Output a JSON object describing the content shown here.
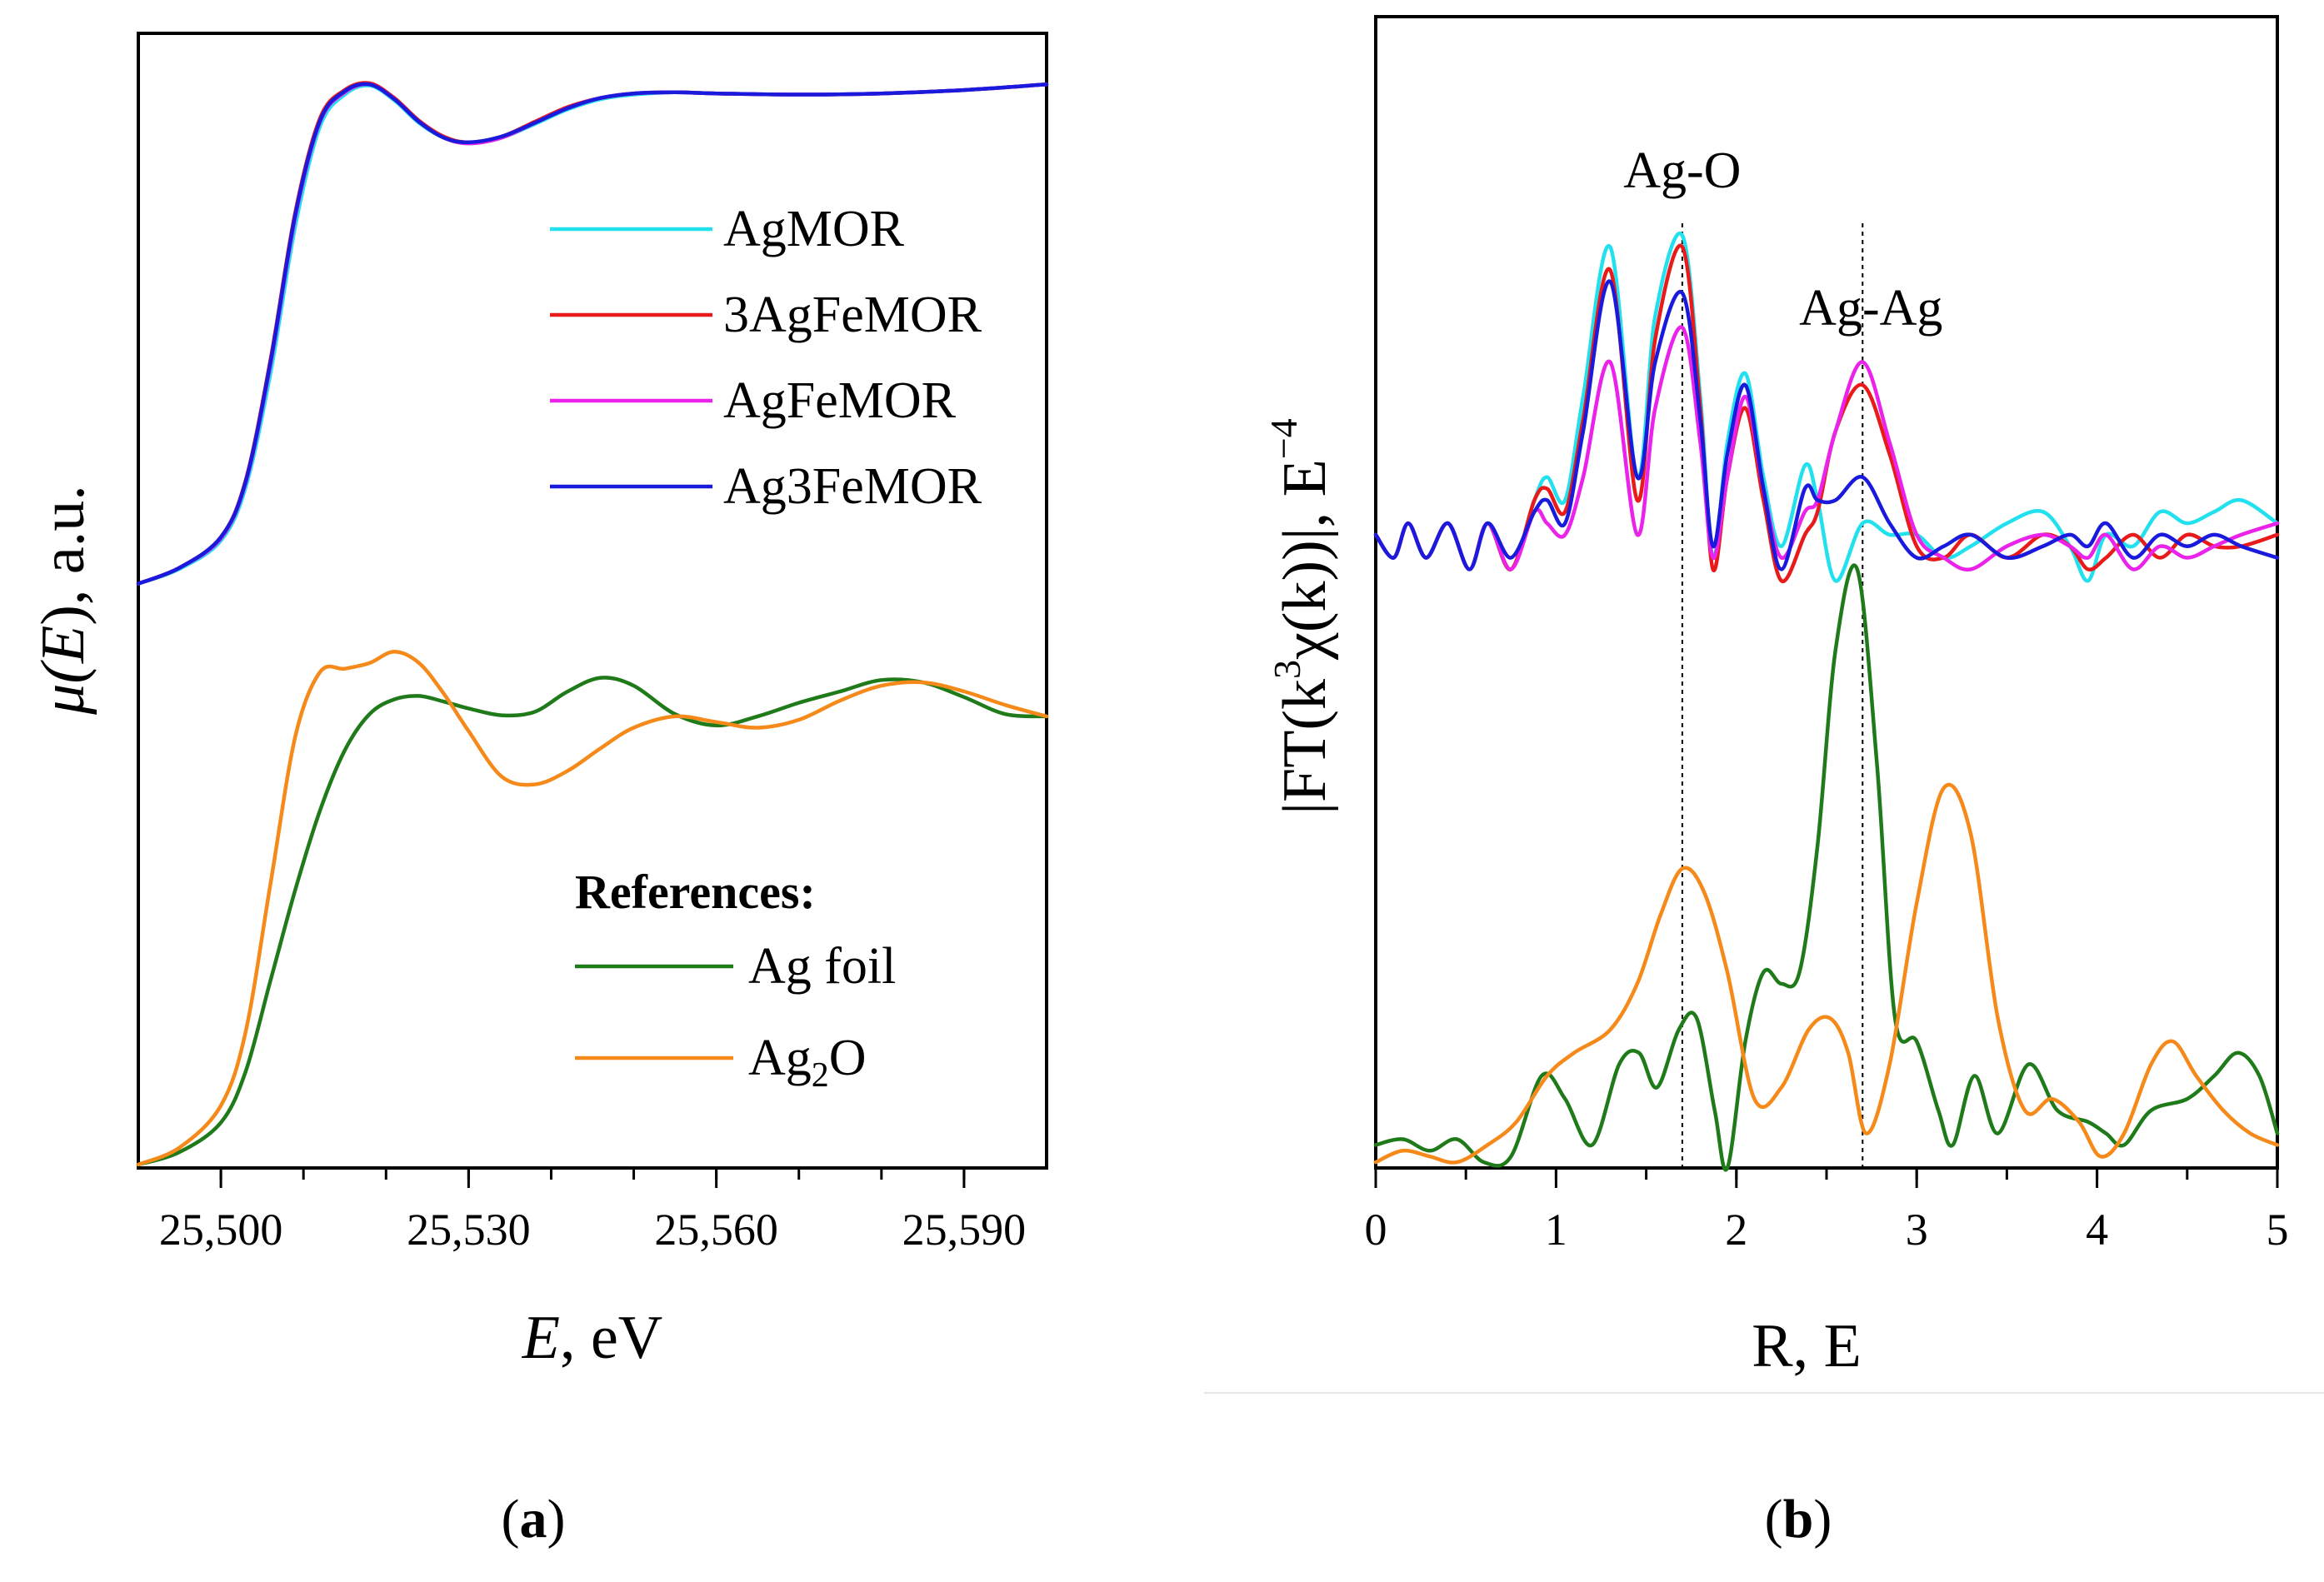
{
  "chart_data": [
    {
      "type": "line",
      "panel_label": "(a)",
      "xlabel": {
        "var": "E",
        "unit": ", eV"
      },
      "ylabel": {
        "var": "μ(",
        "sym": "E",
        "unit": "), a.u."
      },
      "xlim": [
        25490,
        25600
      ],
      "ylim": [
        0,
        1
      ],
      "xticks": [
        25500,
        25530,
        25560,
        25590
      ],
      "xtick_labels": [
        "25,500",
        "25,530",
        "25,560",
        "25,590"
      ],
      "minor_xtick_step": 10,
      "yticks_shown": false,
      "legend": {
        "position": "upper-right",
        "header": "References:",
        "ref_position": "lower-right"
      },
      "series": [
        {
          "name": "AgMOR",
          "color": "#22e0ee",
          "group": "sample",
          "x": [
            25490,
            25495,
            25500,
            25503,
            25506,
            25509,
            25512,
            25515,
            25518,
            25521,
            25524,
            25527,
            25530,
            25534,
            25538,
            25542,
            25546,
            25550,
            25555,
            25560,
            25570,
            25580,
            25590,
            25600
          ],
          "y": [
            0.515,
            0.528,
            0.553,
            0.6,
            0.7,
            0.83,
            0.918,
            0.946,
            0.954,
            0.941,
            0.921,
            0.908,
            0.903,
            0.908,
            0.92,
            0.933,
            0.942,
            0.946,
            0.948,
            0.947,
            0.946,
            0.947,
            0.95,
            0.955
          ]
        },
        {
          "name": "3AgFeMOR",
          "color": "#e81a1a",
          "group": "sample",
          "x": [
            25490,
            25495,
            25500,
            25503,
            25506,
            25509,
            25512,
            25515,
            25518,
            25521,
            25524,
            25527,
            25530,
            25534,
            25538,
            25542,
            25546,
            25550,
            25555,
            25560,
            25570,
            25580,
            25590,
            25600
          ],
          "y": [
            0.515,
            0.529,
            0.556,
            0.606,
            0.712,
            0.842,
            0.925,
            0.95,
            0.956,
            0.943,
            0.923,
            0.909,
            0.904,
            0.909,
            0.922,
            0.935,
            0.943,
            0.947,
            0.948,
            0.947,
            0.946,
            0.947,
            0.95,
            0.955
          ]
        },
        {
          "name": "AgFeMOR",
          "color": "#ea22ea",
          "group": "sample",
          "x": [
            25490,
            25495,
            25500,
            25503,
            25506,
            25509,
            25512,
            25515,
            25518,
            25521,
            25524,
            25527,
            25530,
            25534,
            25538,
            25542,
            25546,
            25550,
            25555,
            25560,
            25570,
            25580,
            25590,
            25600
          ],
          "y": [
            0.515,
            0.529,
            0.555,
            0.604,
            0.708,
            0.838,
            0.922,
            0.948,
            0.955,
            0.942,
            0.922,
            0.908,
            0.903,
            0.908,
            0.921,
            0.934,
            0.943,
            0.947,
            0.948,
            0.947,
            0.946,
            0.947,
            0.95,
            0.955
          ]
        },
        {
          "name": "Ag3FeMOR",
          "color": "#1a1adc",
          "group": "sample",
          "x": [
            25490,
            25495,
            25500,
            25503,
            25506,
            25509,
            25512,
            25515,
            25518,
            25521,
            25524,
            25527,
            25530,
            25534,
            25538,
            25542,
            25546,
            25550,
            25555,
            25560,
            25570,
            25580,
            25590,
            25600
          ],
          "y": [
            0.515,
            0.529,
            0.556,
            0.605,
            0.71,
            0.84,
            0.923,
            0.949,
            0.955,
            0.942,
            0.922,
            0.908,
            0.904,
            0.909,
            0.921,
            0.934,
            0.943,
            0.947,
            0.948,
            0.947,
            0.946,
            0.947,
            0.95,
            0.955
          ]
        },
        {
          "name": "Ag foil",
          "color": "#1f7a1a",
          "group": "reference",
          "x": [
            25490,
            25495,
            25500,
            25503,
            25506,
            25509,
            25512,
            25515,
            25518,
            25521,
            25524,
            25527,
            25530,
            25534,
            25538,
            25542,
            25546,
            25550,
            25555,
            25560,
            25565,
            25570,
            25575,
            25580,
            25585,
            25590,
            25595,
            25600
          ],
          "y": [
            0.003,
            0.014,
            0.04,
            0.085,
            0.165,
            0.245,
            0.315,
            0.368,
            0.4,
            0.413,
            0.416,
            0.411,
            0.405,
            0.399,
            0.402,
            0.42,
            0.432,
            0.425,
            0.4,
            0.39,
            0.398,
            0.41,
            0.42,
            0.43,
            0.428,
            0.415,
            0.4,
            0.398
          ]
        },
        {
          "name": "Ag",
          "sub": "2",
          "name_tail": "O",
          "color": "#f58a1a",
          "group": "reference",
          "x": [
            25490,
            25495,
            25500,
            25503,
            25506,
            25509,
            25512,
            25515,
            25518,
            25521,
            25524,
            25527,
            25530,
            25534,
            25538,
            25542,
            25546,
            25550,
            25555,
            25560,
            25565,
            25570,
            25575,
            25580,
            25585,
            25590,
            25595,
            25600
          ],
          "y": [
            0.003,
            0.018,
            0.055,
            0.12,
            0.25,
            0.38,
            0.437,
            0.44,
            0.445,
            0.455,
            0.445,
            0.418,
            0.385,
            0.345,
            0.338,
            0.35,
            0.37,
            0.388,
            0.398,
            0.393,
            0.388,
            0.395,
            0.412,
            0.425,
            0.428,
            0.42,
            0.408,
            0.398
          ]
        }
      ]
    },
    {
      "type": "line",
      "panel_label": "(b)",
      "xlabel": "R, E",
      "ylabel": {
        "pre": "|FT(k",
        "sup": "3",
        "mid": "χ(k))|, E",
        "sup2": "−4"
      },
      "xlim": [
        0,
        5
      ],
      "ylim": [
        0,
        1
      ],
      "xticks": [
        0,
        1,
        2,
        3,
        4,
        5
      ],
      "xtick_labels": [
        "0",
        "1",
        "2",
        "3",
        "4",
        "5"
      ],
      "minor_xtick_step": 0.5,
      "yticks_shown": false,
      "annotations": [
        {
          "text": "Ag-O",
          "x": 1.7
        },
        {
          "text": "Ag-Ag",
          "x": 2.7
        }
      ],
      "vlines": [
        1.7,
        2.7
      ],
      "series": [
        {
          "name": "AgMOR",
          "color": "#22e0ee",
          "x": [
            0,
            0.1,
            0.18,
            0.28,
            0.4,
            0.52,
            0.62,
            0.75,
            0.88,
            0.95,
            1.05,
            1.15,
            1.3,
            1.45,
            1.55,
            1.7,
            1.8,
            1.87,
            1.95,
            2.05,
            2.15,
            2.25,
            2.38,
            2.45,
            2.55,
            2.7,
            2.85,
            3.0,
            3.15,
            3.3,
            3.5,
            3.7,
            3.85,
            3.95,
            4.05,
            4.2,
            4.35,
            4.5,
            4.65,
            4.8,
            5.0
          ],
          "y": [
            0.55,
            0.53,
            0.56,
            0.53,
            0.56,
            0.52,
            0.56,
            0.52,
            0.58,
            0.6,
            0.58,
            0.67,
            0.8,
            0.6,
            0.74,
            0.81,
            0.67,
            0.53,
            0.63,
            0.69,
            0.6,
            0.54,
            0.61,
            0.58,
            0.51,
            0.56,
            0.55,
            0.55,
            0.53,
            0.54,
            0.56,
            0.57,
            0.54,
            0.51,
            0.55,
            0.54,
            0.57,
            0.56,
            0.57,
            0.58,
            0.56
          ]
        },
        {
          "name": "3AgFeMOR",
          "color": "#e81a1a",
          "x": [
            0,
            0.1,
            0.18,
            0.28,
            0.4,
            0.52,
            0.62,
            0.75,
            0.88,
            0.95,
            1.05,
            1.15,
            1.3,
            1.45,
            1.55,
            1.7,
            1.8,
            1.87,
            1.95,
            2.05,
            2.15,
            2.25,
            2.38,
            2.45,
            2.55,
            2.7,
            2.85,
            3.0,
            3.15,
            3.3,
            3.5,
            3.7,
            3.85,
            3.95,
            4.05,
            4.2,
            4.35,
            4.5,
            4.65,
            4.8,
            5.0
          ],
          "y": [
            0.55,
            0.53,
            0.56,
            0.53,
            0.56,
            0.52,
            0.56,
            0.52,
            0.58,
            0.59,
            0.57,
            0.65,
            0.78,
            0.58,
            0.72,
            0.8,
            0.66,
            0.52,
            0.6,
            0.66,
            0.58,
            0.51,
            0.55,
            0.57,
            0.64,
            0.68,
            0.62,
            0.54,
            0.53,
            0.55,
            0.53,
            0.55,
            0.54,
            0.52,
            0.53,
            0.55,
            0.53,
            0.55,
            0.54,
            0.54,
            0.55
          ]
        },
        {
          "name": "AgFeMOR",
          "color": "#ea22ea",
          "x": [
            0,
            0.1,
            0.18,
            0.28,
            0.4,
            0.52,
            0.62,
            0.75,
            0.88,
            0.95,
            1.05,
            1.15,
            1.3,
            1.45,
            1.55,
            1.7,
            1.8,
            1.87,
            1.95,
            2.05,
            2.15,
            2.25,
            2.38,
            2.45,
            2.55,
            2.7,
            2.85,
            3.0,
            3.15,
            3.3,
            3.5,
            3.7,
            3.85,
            3.95,
            4.05,
            4.2,
            4.35,
            4.5,
            4.65,
            4.8,
            5.0
          ],
          "y": [
            0.55,
            0.53,
            0.56,
            0.53,
            0.56,
            0.52,
            0.56,
            0.52,
            0.57,
            0.56,
            0.55,
            0.6,
            0.7,
            0.55,
            0.66,
            0.73,
            0.63,
            0.53,
            0.6,
            0.67,
            0.59,
            0.53,
            0.57,
            0.58,
            0.64,
            0.7,
            0.63,
            0.55,
            0.53,
            0.52,
            0.54,
            0.55,
            0.54,
            0.53,
            0.55,
            0.52,
            0.54,
            0.53,
            0.54,
            0.55,
            0.56
          ]
        },
        {
          "name": "Ag3FeMOR",
          "color": "#1a1adc",
          "x": [
            0,
            0.1,
            0.18,
            0.28,
            0.4,
            0.52,
            0.62,
            0.75,
            0.88,
            0.95,
            1.05,
            1.15,
            1.3,
            1.45,
            1.55,
            1.7,
            1.8,
            1.87,
            1.95,
            2.05,
            2.15,
            2.25,
            2.38,
            2.45,
            2.55,
            2.7,
            2.85,
            3.0,
            3.15,
            3.3,
            3.5,
            3.7,
            3.85,
            3.95,
            4.05,
            4.2,
            4.35,
            4.5,
            4.65,
            4.8,
            5.0
          ],
          "y": [
            0.55,
            0.53,
            0.56,
            0.53,
            0.56,
            0.52,
            0.56,
            0.53,
            0.57,
            0.58,
            0.56,
            0.64,
            0.77,
            0.6,
            0.7,
            0.76,
            0.65,
            0.54,
            0.62,
            0.68,
            0.59,
            0.52,
            0.59,
            0.58,
            0.58,
            0.6,
            0.56,
            0.53,
            0.54,
            0.55,
            0.53,
            0.54,
            0.55,
            0.54,
            0.56,
            0.53,
            0.55,
            0.54,
            0.55,
            0.54,
            0.53
          ]
        },
        {
          "name": "Ag foil",
          "color": "#1f7a1a",
          "x": [
            0,
            0.15,
            0.3,
            0.45,
            0.6,
            0.75,
            0.92,
            1.05,
            1.2,
            1.35,
            1.46,
            1.56,
            1.68,
            1.78,
            1.88,
            1.95,
            2.05,
            2.15,
            2.25,
            2.35,
            2.45,
            2.55,
            2.67,
            2.78,
            2.88,
            3.0,
            3.12,
            3.2,
            3.32,
            3.45,
            3.62,
            3.78,
            3.95,
            4.05,
            4.15,
            4.3,
            4.5,
            4.65,
            4.78,
            4.9,
            5.0
          ],
          "y": [
            0.02,
            0.025,
            0.015,
            0.025,
            0.005,
            0.01,
            0.08,
            0.06,
            0.02,
            0.09,
            0.1,
            0.07,
            0.12,
            0.13,
            0.05,
            0.0,
            0.11,
            0.17,
            0.16,
            0.17,
            0.28,
            0.45,
            0.52,
            0.35,
            0.13,
            0.11,
            0.05,
            0.02,
            0.08,
            0.03,
            0.09,
            0.05,
            0.04,
            0.03,
            0.02,
            0.05,
            0.06,
            0.08,
            0.1,
            0.08,
            0.03
          ]
        },
        {
          "name": "Ag",
          "sub": "2",
          "name_tail": "O",
          "color": "#f58a1a",
          "x": [
            0,
            0.15,
            0.3,
            0.45,
            0.62,
            0.78,
            0.95,
            1.1,
            1.3,
            1.45,
            1.58,
            1.7,
            1.82,
            1.95,
            2.1,
            2.25,
            2.4,
            2.52,
            2.62,
            2.72,
            2.85,
            3.0,
            3.15,
            3.3,
            3.45,
            3.6,
            3.75,
            3.9,
            4.02,
            4.15,
            4.3,
            4.42,
            4.55,
            4.7,
            4.85,
            5.0
          ],
          "y": [
            0.005,
            0.015,
            0.01,
            0.005,
            0.02,
            0.04,
            0.08,
            0.1,
            0.12,
            0.16,
            0.22,
            0.26,
            0.24,
            0.17,
            0.06,
            0.07,
            0.12,
            0.13,
            0.1,
            0.03,
            0.09,
            0.23,
            0.33,
            0.29,
            0.13,
            0.05,
            0.06,
            0.04,
            0.01,
            0.03,
            0.09,
            0.11,
            0.08,
            0.05,
            0.03,
            0.02
          ]
        }
      ]
    }
  ]
}
